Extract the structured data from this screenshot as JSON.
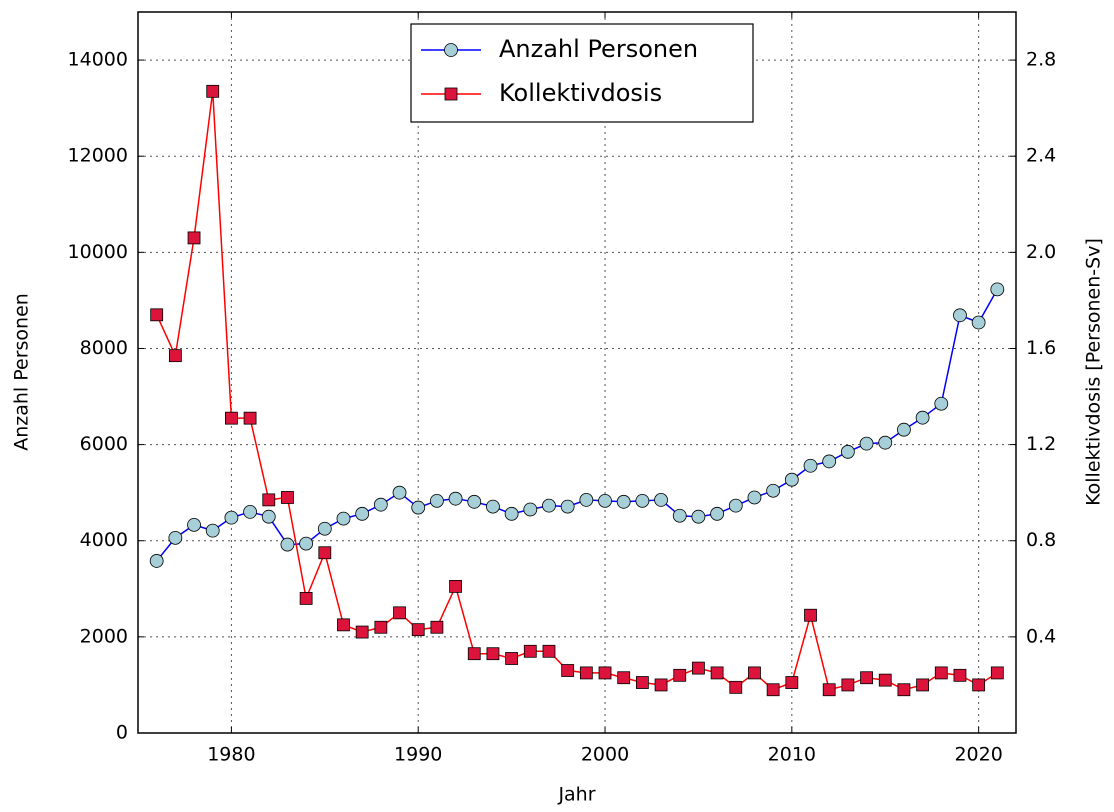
{
  "chart_data": {
    "type": "line",
    "x": [
      1976,
      1977,
      1978,
      1979,
      1980,
      1981,
      1982,
      1983,
      1984,
      1985,
      1986,
      1987,
      1988,
      1989,
      1990,
      1991,
      1992,
      1993,
      1994,
      1995,
      1996,
      1997,
      1998,
      1999,
      2000,
      2001,
      2002,
      2003,
      2004,
      2005,
      2006,
      2007,
      2008,
      2009,
      2010,
      2011,
      2012,
      2013,
      2014,
      2015,
      2016,
      2017,
      2018,
      2019,
      2020,
      2021
    ],
    "xlabel": "Jahr",
    "ylabel": "Anzahl Personen",
    "y2label": "Kollektivdosis [Personen-Sv]",
    "xlim": [
      1975,
      2022
    ],
    "xticks": [
      1980,
      1990,
      2000,
      2010,
      2020
    ],
    "ylim": [
      0,
      15000
    ],
    "yticks": [
      0,
      2000,
      4000,
      6000,
      8000,
      10000,
      12000,
      14000
    ],
    "y2lim": [
      0,
      3.0
    ],
    "y2ticks": [
      0.4,
      0.8,
      1.2,
      1.6,
      {
        "value": 2.0,
        "label": "2.0"
      },
      2.4,
      2.8
    ],
    "grid": true,
    "legend": "upper center",
    "series": [
      {
        "name": "Anzahl Personen",
        "color": "#0000ff",
        "marker_color": "#a6cfd8",
        "marker": "circle",
        "values": [
          3580,
          4060,
          4330,
          4210,
          4480,
          4600,
          4500,
          3920,
          3940,
          4250,
          4460,
          4560,
          4750,
          5000,
          4690,
          4830,
          4875,
          4810,
          4710,
          4560,
          4650,
          4730,
          4710,
          4850,
          4830,
          4810,
          4830,
          4850,
          4520,
          4500,
          4560,
          4730,
          4900,
          5040,
          5270,
          5560,
          5650,
          5850,
          6020,
          6040,
          6310,
          6560,
          6850,
          8690,
          8540,
          9230
        ]
      },
      {
        "name": "Kollektivdosis",
        "color": "#ff0000",
        "marker_color": "#dc143c",
        "marker": "square",
        "axis": "y2",
        "values": [
          1.74,
          1.57,
          2.06,
          2.67,
          1.31,
          1.31,
          0.97,
          0.98,
          0.56,
          0.75,
          0.45,
          0.42,
          0.44,
          0.5,
          0.43,
          0.44,
          0.61,
          0.33,
          0.33,
          0.31,
          0.34,
          0.34,
          0.26,
          0.25,
          0.25,
          0.23,
          0.21,
          0.2,
          0.24,
          0.27,
          0.25,
          0.19,
          0.25,
          0.18,
          0.21,
          0.49,
          0.18,
          0.2,
          0.23,
          0.22,
          0.18,
          0.2,
          0.25,
          0.24,
          0.2,
          0.25
        ]
      }
    ]
  }
}
